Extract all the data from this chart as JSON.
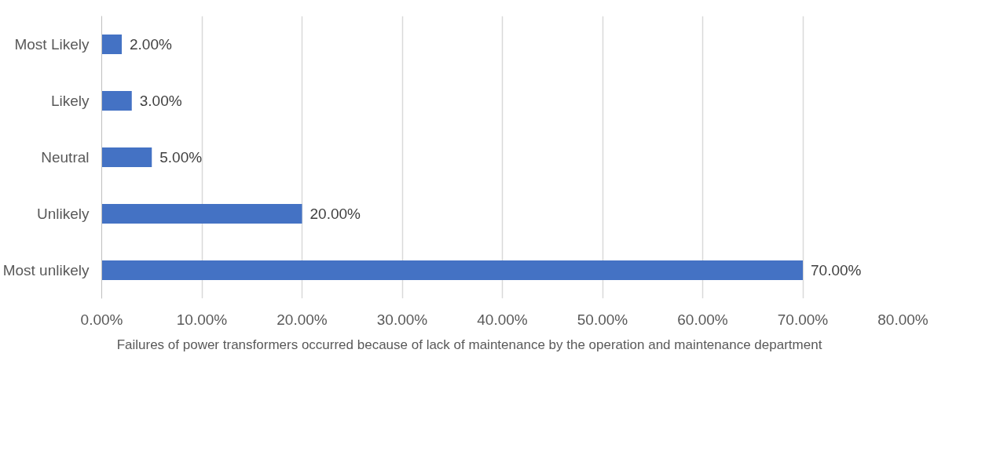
{
  "chart_data": {
    "type": "bar",
    "orientation": "horizontal",
    "categories": [
      "Most Likely",
      "Likely",
      "Neutral",
      "Unlikely",
      "Most unlikely"
    ],
    "series": [
      {
        "name": "Failures of power transformers occurred because of lack of maintenance by the operation and maintenance department",
        "color": "#4472c4",
        "values": [
          2,
          3,
          5,
          20,
          70
        ],
        "value_labels": [
          "2.00%",
          "3.00%",
          "5.00%",
          "20.00%",
          "70.00%"
        ]
      }
    ],
    "xlim": [
      0,
      80
    ],
    "xticks": [
      {
        "value": 0,
        "label": "0.00%"
      },
      {
        "value": 10,
        "label": "10.00%"
      },
      {
        "value": 20,
        "label": "20.00%"
      },
      {
        "value": 30,
        "label": "30.00%"
      },
      {
        "value": 40,
        "label": "40.00%"
      },
      {
        "value": 50,
        "label": "50.00%"
      },
      {
        "value": 60,
        "label": "60.00%"
      },
      {
        "value": 70,
        "label": "70.00%"
      },
      {
        "value": 80,
        "label": "80.00%"
      }
    ],
    "grid": "x",
    "legend": "bottom"
  }
}
